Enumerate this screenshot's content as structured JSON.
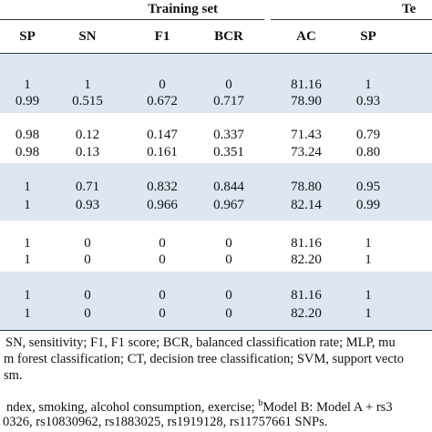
{
  "group_headers": {
    "training": "Training set",
    "testing": "Te"
  },
  "columns": [
    "SP",
    "SN",
    "F1",
    "BCR",
    "AC",
    "SP"
  ],
  "row_groups": [
    {
      "rows": [
        [
          "1",
          "1",
          "0",
          "0",
          "81.16",
          "1"
        ],
        [
          "0.99",
          "0.515",
          "0.672",
          "0.717",
          "78.90",
          "0.93"
        ]
      ]
    },
    {
      "rows": [
        [
          "0.98",
          "0.12",
          "0.147",
          "0.337",
          "71.43",
          "0.79"
        ],
        [
          "0.98",
          "0.13",
          "0.161",
          "0.351",
          "73.24",
          "0.80"
        ]
      ]
    },
    {
      "rows": [
        [
          "1",
          "0.71",
          "0.832",
          "0.844",
          "78.80",
          "0.95"
        ],
        [
          "1",
          "0.93",
          "0.966",
          "0.967",
          "82.14",
          "0.99"
        ]
      ]
    },
    {
      "rows": [
        [
          "1",
          "0",
          "0",
          "0",
          "81.16",
          "1"
        ],
        [
          "1",
          "0",
          "0",
          "0",
          "82.20",
          "1"
        ]
      ]
    },
    {
      "rows": [
        [
          "1",
          "0",
          "0",
          "0",
          "81.16",
          "1"
        ],
        [
          "1",
          "0",
          "0",
          "0",
          "82.20",
          "1"
        ]
      ]
    }
  ],
  "footnotes": {
    "line1": "SN, sensitivity; F1, F1 score; BCR, balanced classification rate; MLP, mu",
    "line2": "m forest classification; CT, decision tree classification; SVM, support vecto",
    "line3": "sm.",
    "line4_a": "ndex, smoking, alcohol consumption, exercise; ",
    "line4_sup": "b",
    "line4_b": "Model B: Model A + rs3",
    "line5": "0326, rs10830962, rs1883025, rs1919128, rs11757661 SNPs."
  },
  "colors": {
    "band_shade": "#dde6f1",
    "rule": "#333333"
  }
}
